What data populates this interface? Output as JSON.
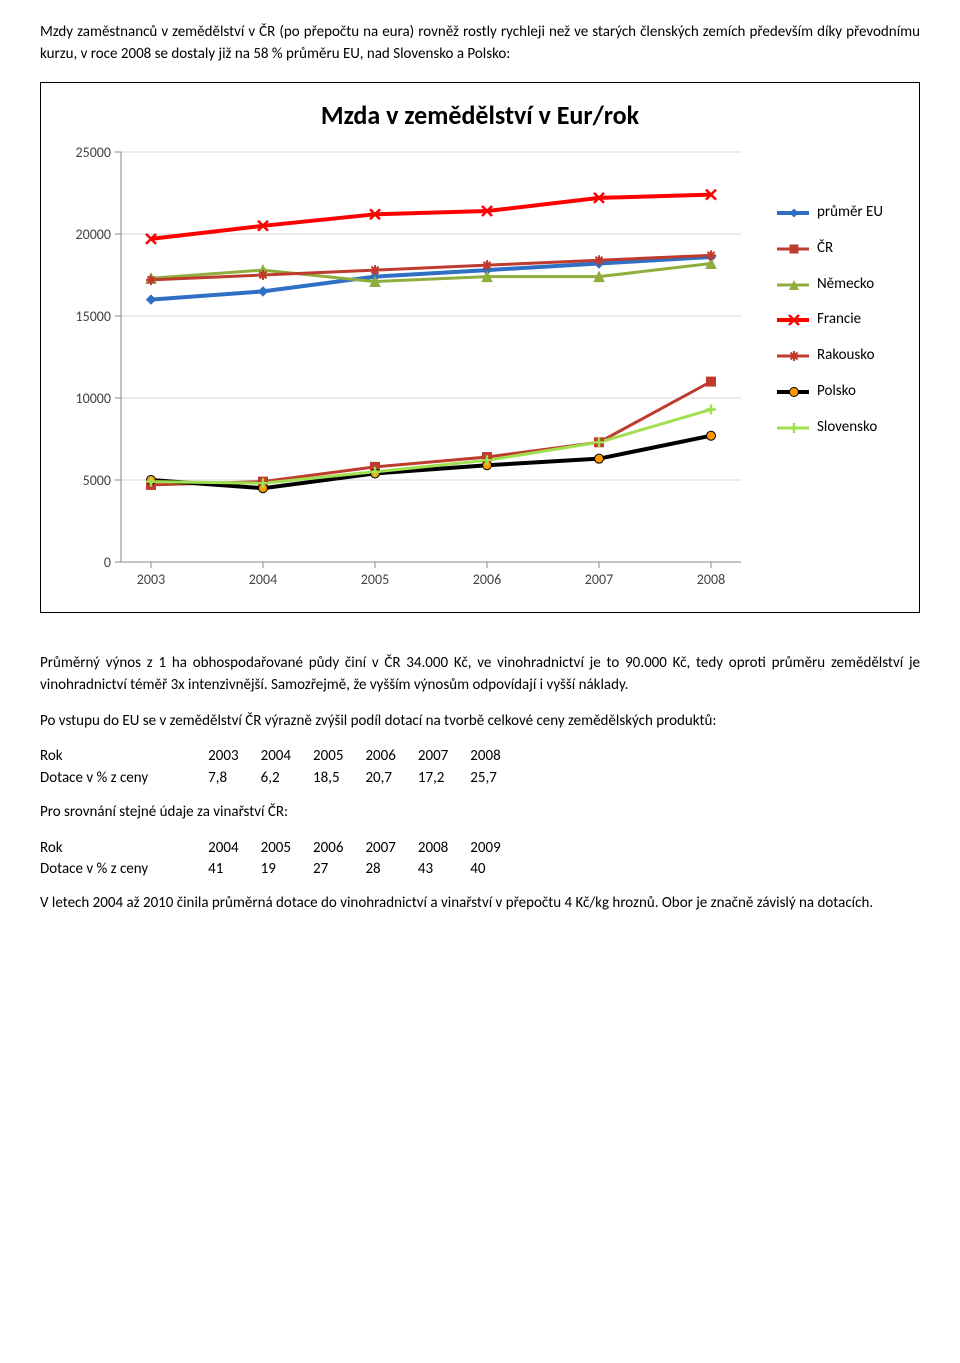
{
  "intro_para": "Mzdy zaměstnanců v zemědělství v ČR (po přepočtu na eura) rovněž rostly rychleji než ve starých členských zemích především díky převodnímu kurzu, v roce 2008 se dostaly již na 58 % průměru EU, nad Slovensko a Polsko:",
  "chart": {
    "title": "Mzda v zemědělství v Eur/rok",
    "title_fontsize": 26,
    "background": "#ffffff",
    "border_color": "#000000",
    "grid_color": "#d9d9d9",
    "years": [
      "2003",
      "2004",
      "2005",
      "2006",
      "2007",
      "2008"
    ],
    "ylim": [
      0,
      25000
    ],
    "ytick_step": 5000,
    "yticks": [
      "0",
      "5000",
      "10000",
      "15000",
      "20000",
      "25000"
    ],
    "axis_fontsize": 14,
    "series": [
      {
        "name": "průměr EU",
        "color": "#2f70c4",
        "line_width": 4,
        "marker": "diamond",
        "marker_size": 9,
        "values": [
          16000,
          16500,
          17400,
          17800,
          18200,
          18600
        ]
      },
      {
        "name": "ČR",
        "color": "#bf3b2d",
        "line_width": 3,
        "marker": "square",
        "marker_size": 9,
        "values": [
          4700,
          4900,
          5800,
          6400,
          7300,
          11000
        ]
      },
      {
        "name": "Německo",
        "color": "#8fae3d",
        "line_width": 3,
        "marker": "triangle",
        "marker_size": 10,
        "values": [
          17300,
          17800,
          17100,
          17400,
          17400,
          18200
        ]
      },
      {
        "name": "Francie",
        "color": "#ff0000",
        "line_width": 4,
        "marker": "x",
        "marker_size": 10,
        "values": [
          19700,
          20500,
          21200,
          21400,
          22200,
          22400
        ]
      },
      {
        "name": "Rakousko",
        "color": "#bf3b2d",
        "line_width": 3,
        "marker": "star",
        "marker_size": 10,
        "values": [
          17200,
          17500,
          17800,
          18100,
          18400,
          18700
        ]
      },
      {
        "name": "Polsko",
        "color": "#ff9900",
        "line_width": 4,
        "marker": "circle",
        "marker_size": 9,
        "stroke_extra": "#000000",
        "values": [
          5000,
          4500,
          5400,
          5900,
          6300,
          7700
        ]
      },
      {
        "name": "Slovensko",
        "color": "#a0e050",
        "line_width": 3,
        "marker": "plus",
        "marker_size": 10,
        "values": [
          4900,
          4800,
          5500,
          6200,
          7300,
          9300
        ]
      }
    ],
    "polsko_line_color": "#000000"
  },
  "mid_para1": "Průměrný výnos z 1 ha obhospodařované půdy činí v ČR 34.000 Kč, ve vinohradnictví je to 90.000 Kč, tedy oproti průměru zemědělství je vinohradnictví téměř 3x intenzivnější. Samozřejmě, že vyšším výnosům odpovídají i vyšší náklady.",
  "mid_para2": "Po vstupu do EU se v zemědělství ČR výrazně zvýšil podíl dotací na tvorbě celkové ceny zemědělských produktů:",
  "table1": {
    "row1_label": "Rok",
    "row1_vals": [
      "2003",
      "2004",
      "2005",
      "2006",
      "2007",
      "2008"
    ],
    "row2_label": "Dotace v % z ceny",
    "row2_vals": [
      "7,8",
      "6,2",
      "18,5",
      "20,7",
      "17,2",
      "25,7"
    ]
  },
  "mid_para3": "Pro srovnání stejné údaje za vinařství ČR:",
  "table2": {
    "row1_label": "Rok",
    "row1_vals": [
      "2004",
      "2005",
      "2006",
      "2007",
      "2008",
      "2009"
    ],
    "row2_label": "Dotace v % z ceny",
    "row2_vals": [
      "41",
      "19",
      "27",
      "28",
      "43",
      "40"
    ]
  },
  "end_para": "V letech 2004 až 2010 činila průměrná dotace do vinohradnictví a vinařství v přepočtu 4 Kč/kg hroznů. Obor je značně závislý na dotacích."
}
